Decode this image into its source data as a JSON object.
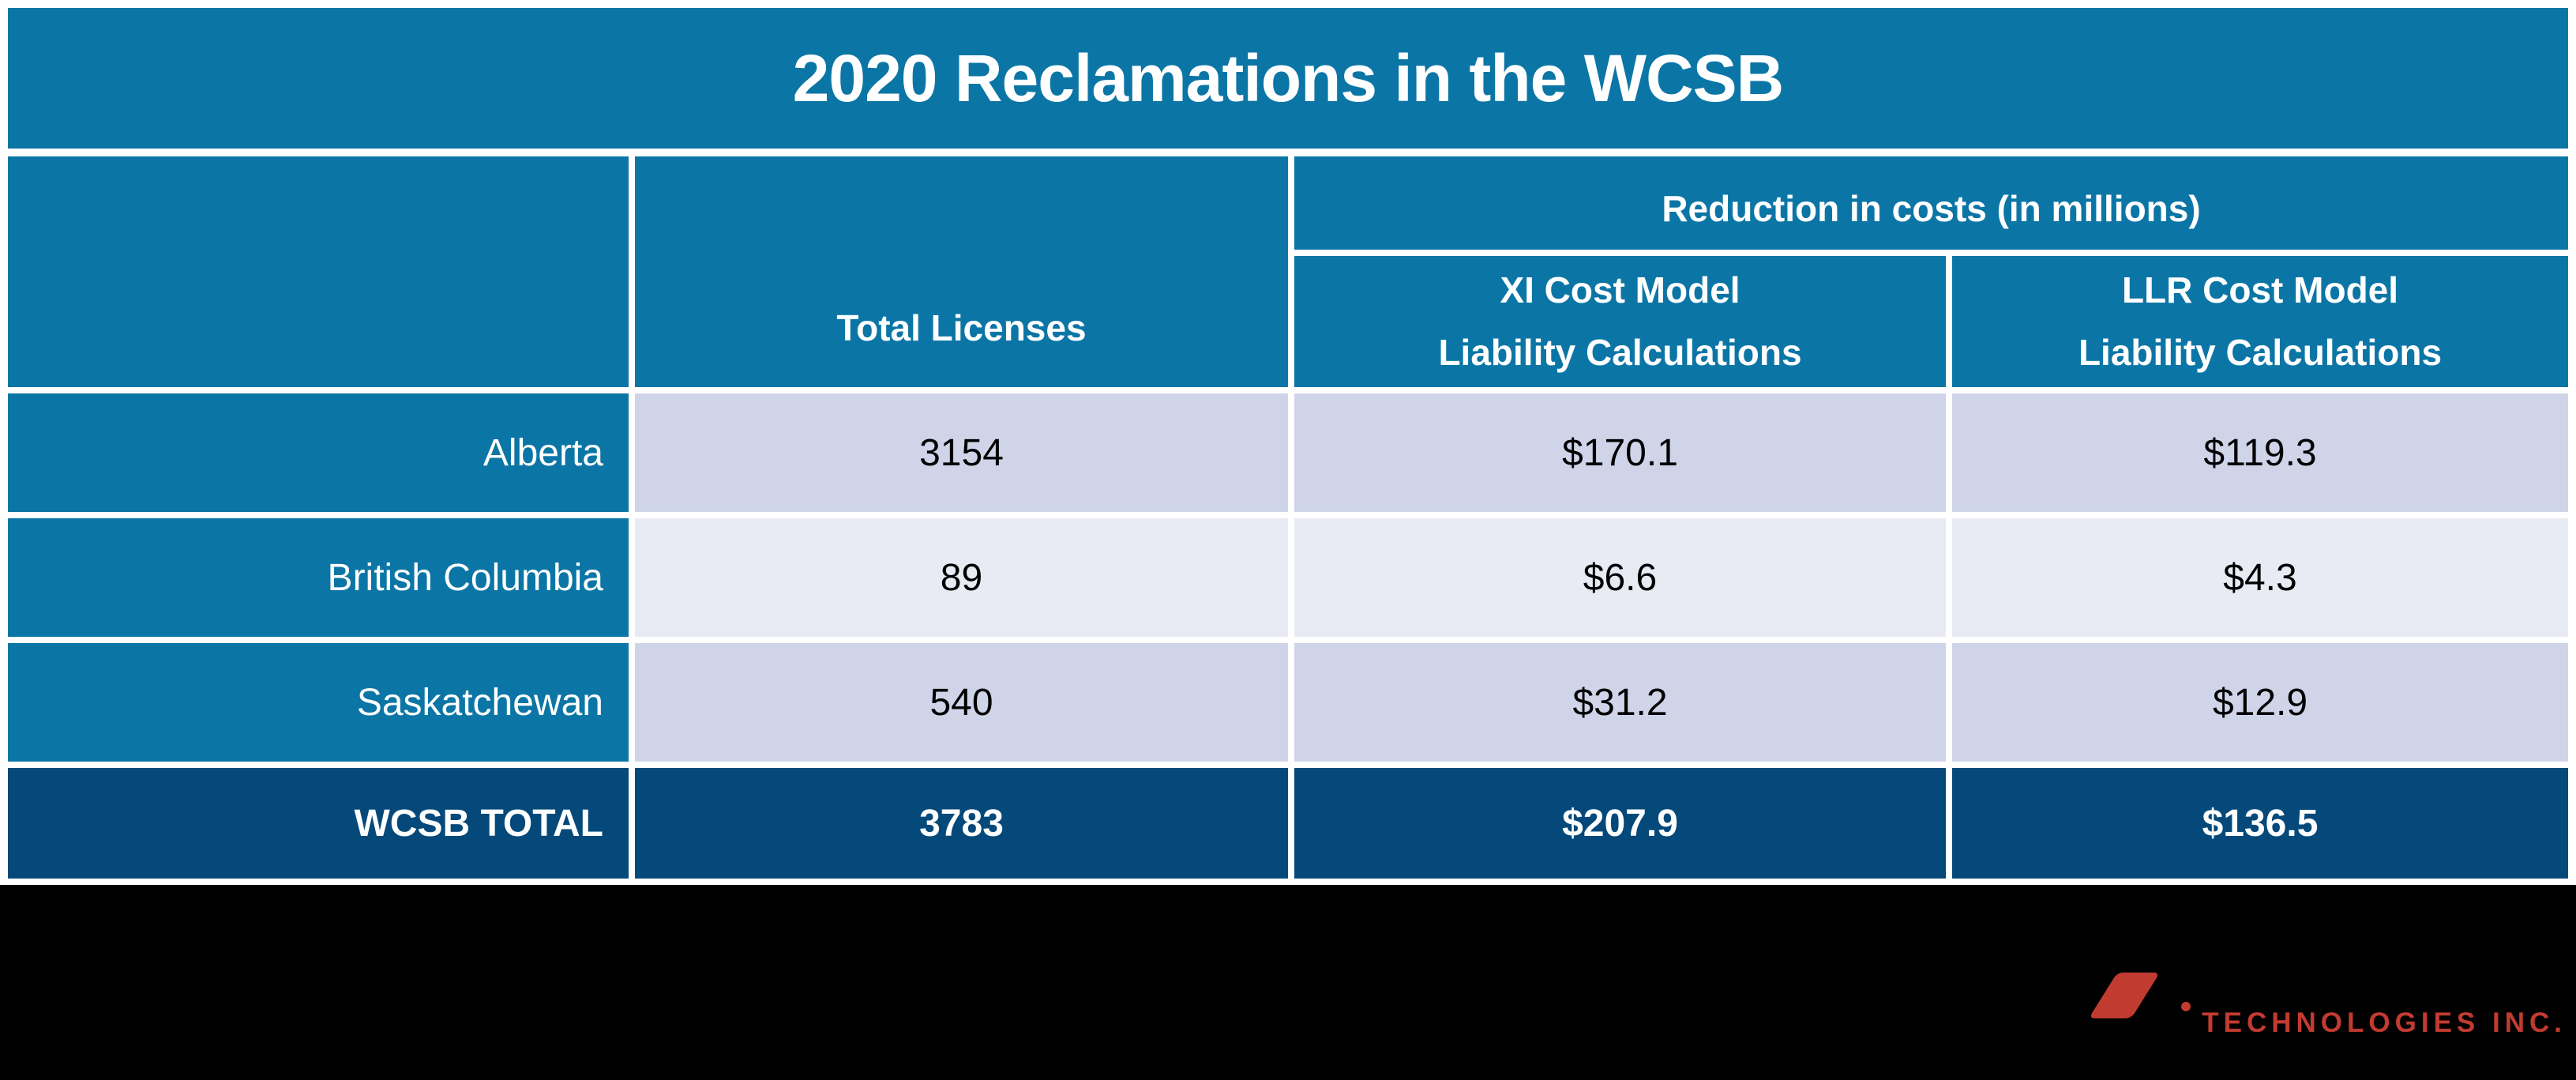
{
  "title": "2020 Reclamations in the WCSB",
  "table": {
    "col2_header": "Total Licenses",
    "group_header": "Reduction in costs (in millions)",
    "xi_header": {
      "line1": "XI Cost Model",
      "line2": "Liability Calculations"
    },
    "llr_header": {
      "line1": "LLR Cost Model",
      "line2": "Liability Calculations"
    },
    "rows": [
      {
        "label": "Alberta",
        "total_licenses": "3154",
        "xi": "$170.1",
        "llr": "$119.3"
      },
      {
        "label": "British Columbia",
        "total_licenses": "89",
        "xi": "$6.6",
        "llr": "$4.3"
      },
      {
        "label": "Saskatchewan",
        "total_licenses": "540",
        "xi": "$31.2",
        "llr": "$12.9"
      }
    ],
    "total_row": {
      "label": "WCSB TOTAL",
      "total_licenses": "3783",
      "xi": "$207.9",
      "llr": "$136.5"
    }
  },
  "footer": {
    "logo_text": "TECHNOLOGIES INC."
  },
  "colors": {
    "header_blue": "#0b76a6",
    "total_navy": "#04497a",
    "band_dark": "#cfd4e9",
    "band_light": "#e8ebf4",
    "footer_black": "#000000",
    "logo_red": "#c23b31",
    "text_white": "#ffffff",
    "text_black": "#000000"
  },
  "chart_data": {
    "type": "table",
    "title": "2020 Reclamations in the WCSB",
    "column_group": {
      "label": "Reduction in costs (in millions)",
      "spans": [
        "XI Cost Model Liability Calculations",
        "LLR Cost Model Liability Calculations"
      ]
    },
    "columns": [
      "",
      "Total Licenses",
      "XI Cost Model Liability Calculations",
      "LLR Cost Model Liability Calculations"
    ],
    "rows": [
      [
        "Alberta",
        3154,
        170.1,
        119.3
      ],
      [
        "British Columbia",
        89,
        6.6,
        4.3
      ],
      [
        "Saskatchewan",
        540,
        31.2,
        12.9
      ],
      [
        "WCSB TOTAL",
        3783,
        207.9,
        136.5
      ]
    ]
  }
}
